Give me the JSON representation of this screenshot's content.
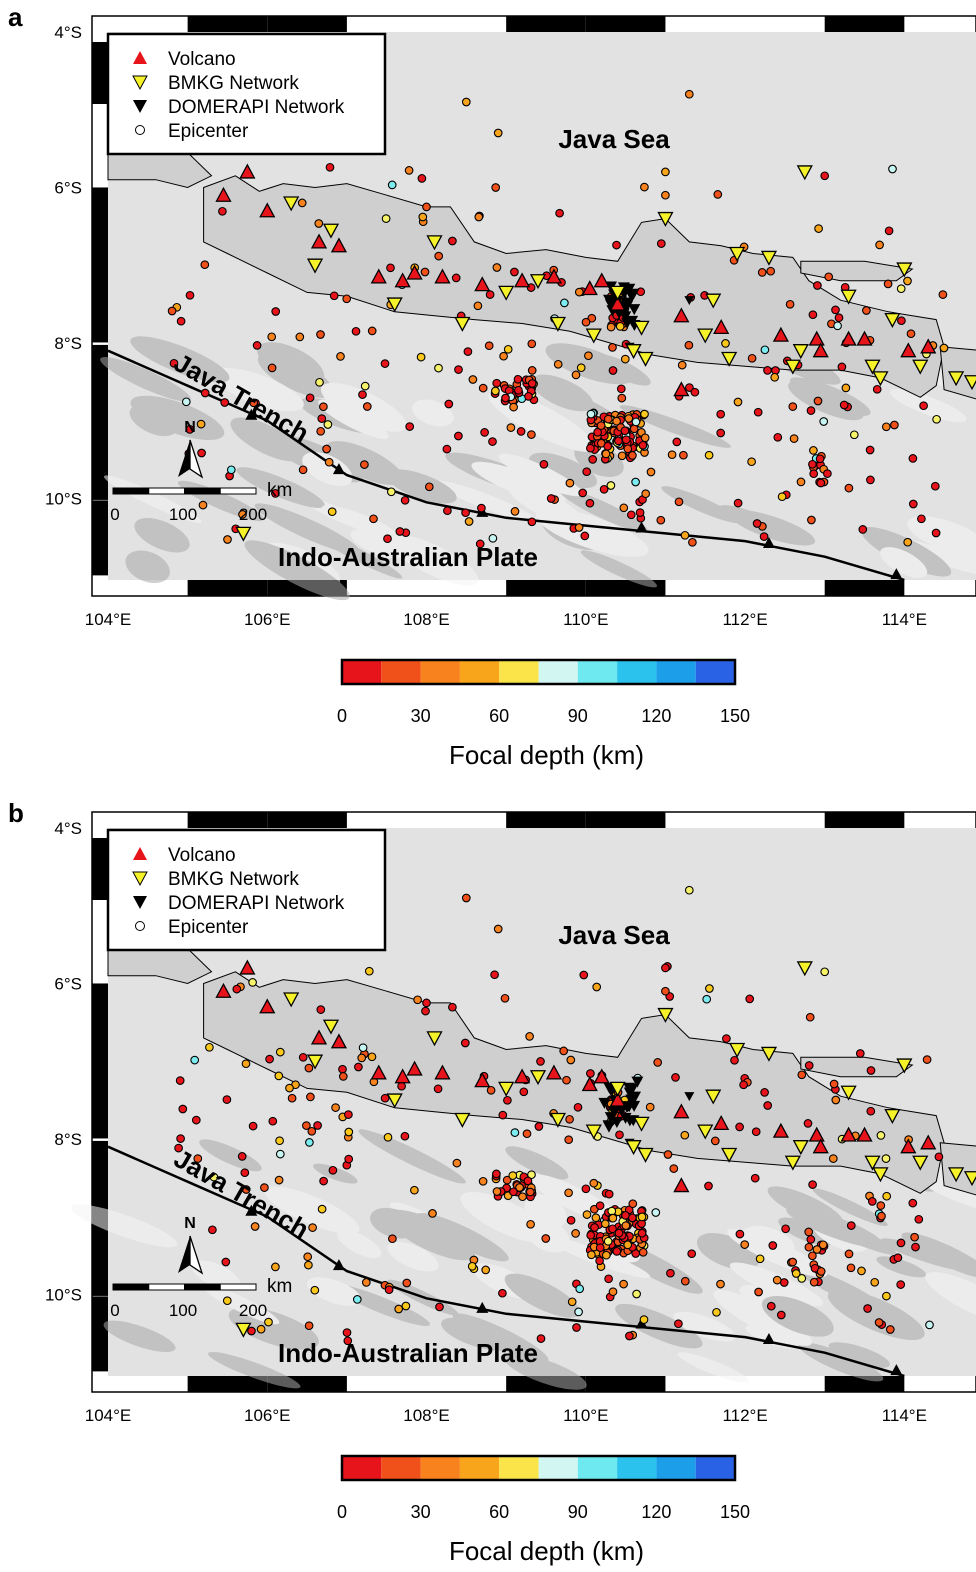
{
  "colors": {
    "volcano": "#e8141b",
    "bmkg": "#f5f22a",
    "domerapi": "#000000",
    "trench": "#000000",
    "land_fill": "#ededed",
    "sea_fill": "#d9d9d9",
    "depth_scale": [
      "#e8141b",
      "#f0501a",
      "#f7821e",
      "#f9a51c",
      "#fbc91c",
      "#f6f36a",
      "#c7f5f2",
      "#7cecf0",
      "#3fd0ef",
      "#1ab1ea",
      "#1d8fe6",
      "#2a62e6"
    ]
  },
  "colorbar": {
    "ticks": [
      "0",
      "30",
      "60",
      "90",
      "120",
      "150"
    ],
    "title": "Focal depth (km)"
  },
  "legend": {
    "items": [
      {
        "symbol": "volcano",
        "label": "Volcano"
      },
      {
        "symbol": "bmkg",
        "label": "BMKG Network"
      },
      {
        "symbol": "domerapi",
        "label": "DOMERAPI Network"
      },
      {
        "symbol": "epicenter",
        "label": "Epicenter"
      }
    ]
  },
  "map_labels": {
    "sea": "Java Sea",
    "trench": "Java Trench",
    "plate": "Indo-Australian Plate",
    "north": "N",
    "scale_unit": "km",
    "scale_ticks": [
      "0",
      "100",
      "200"
    ]
  },
  "axes": {
    "lat_ticks": [
      "4°S",
      "6°S",
      "8°S",
      "10°S"
    ],
    "lon_ticks": [
      "104°E",
      "106°E",
      "108°E",
      "110°E",
      "112°E",
      "114°E"
    ]
  },
  "panels": [
    {
      "letter": "a",
      "seed": 11
    },
    {
      "letter": "b",
      "seed": 29
    }
  ],
  "icons": {
    "volcano": "red-triangle-up",
    "bmkg": "yellow-triangle-down",
    "domerapi": "black-triangle-down",
    "epicenter": "open-circle",
    "north_arrow": "north-arrow"
  }
}
